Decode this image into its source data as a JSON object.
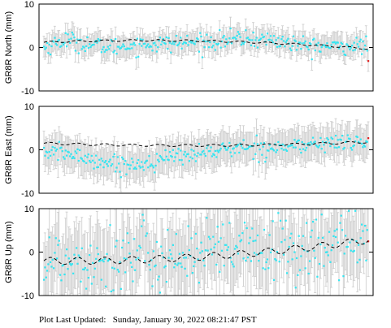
{
  "footer": {
    "label": "Plot Last Updated:",
    "timestamp": "Sunday, January 30, 2022 08:21:47 PST"
  },
  "colors": {
    "points": "#33e6f2",
    "last_point": "#e02020",
    "error_bars": "#cfcfcf",
    "trend": "#000000",
    "frame": "#000000"
  },
  "chart_data": [
    {
      "type": "scatter",
      "ylabel": "GR8R North (mm)",
      "ylim": [
        -10,
        10
      ],
      "yticks": [
        -10,
        0,
        10
      ],
      "grid": false,
      "n_points": 300,
      "error_bar_mm": 2.4,
      "trend": {
        "start": 1.2,
        "mid": 1.5,
        "end": -0.3,
        "amp": 0.2,
        "period": 25
      },
      "anchors": [
        [
          0,
          0.0
        ],
        [
          20,
          1.8
        ],
        [
          40,
          0.8
        ],
        [
          60,
          0.0
        ],
        [
          80,
          0.5
        ],
        [
          100,
          0.8
        ],
        [
          120,
          1.0
        ],
        [
          150,
          1.3
        ],
        [
          180,
          2.0
        ],
        [
          210,
          1.8
        ],
        [
          240,
          0.4
        ],
        [
          270,
          0.2
        ],
        [
          290,
          0.5
        ],
        [
          299,
          0.3
        ]
      ],
      "scatter_sd": 1.0,
      "last_point": {
        "index": 299,
        "y": -3.1
      }
    },
    {
      "type": "scatter",
      "ylabel": "GR8R East (mm)",
      "ylim": [
        -10,
        10
      ],
      "yticks": [
        -10,
        0,
        10
      ],
      "grid": false,
      "n_points": 300,
      "error_bar_mm": 3.6,
      "trend": {
        "start": 1.5,
        "mid": 1.0,
        "end": 1.8,
        "amp": 0.25,
        "period": 25
      },
      "anchors": [
        [
          0,
          -0.5
        ],
        [
          20,
          -0.8
        ],
        [
          40,
          -2.0
        ],
        [
          60,
          -3.0
        ],
        [
          80,
          -3.5
        ],
        [
          100,
          -2.8
        ],
        [
          120,
          -1.5
        ],
        [
          150,
          -0.5
        ],
        [
          180,
          0.5
        ],
        [
          210,
          0.5
        ],
        [
          240,
          1.0
        ],
        [
          270,
          1.8
        ],
        [
          290,
          1.5
        ],
        [
          299,
          1.5
        ]
      ],
      "scatter_sd": 1.0,
      "last_point": {
        "index": 299,
        "y": 2.7
      }
    },
    {
      "type": "scatter",
      "ylabel": "GR8R Up (mm)",
      "ylim": [
        -10,
        10
      ],
      "yticks": [
        -10,
        0,
        10
      ],
      "grid": false,
      "n_points": 300,
      "error_bar_mm": 7.5,
      "trend": {
        "start": -2.0,
        "mid": -1.0,
        "end": 2.8,
        "amp": 0.8,
        "period": 25
      },
      "anchors": [
        [
          0,
          -2.0
        ],
        [
          30,
          -1.5
        ],
        [
          60,
          -1.5
        ],
        [
          100,
          -1.0
        ],
        [
          150,
          -0.5
        ],
        [
          200,
          0.5
        ],
        [
          250,
          1.0
        ],
        [
          299,
          2.5
        ]
      ],
      "scatter_sd": 3.8,
      "last_point": {
        "index": 299,
        "y": 2.5
      }
    }
  ]
}
